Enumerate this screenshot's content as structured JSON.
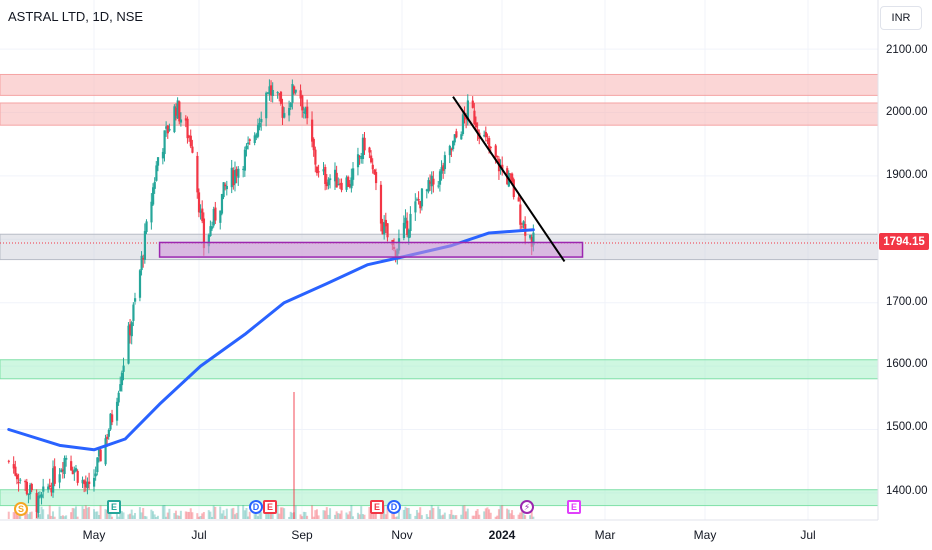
{
  "header": {
    "symbol_title": "ASTRAL LTD, 1D, NSE"
  },
  "currency": "INR",
  "last_price_label": "1794.15",
  "y_ticks": [
    "2100.00",
    "2000.00",
    "1900.00",
    "1800.00",
    "1700.00",
    "1600.00",
    "1500.00",
    "1400.00"
  ],
  "x_ticks": [
    "May",
    "Jul",
    "Sep",
    "Nov",
    "2024",
    "Mar",
    "May",
    "Jul"
  ],
  "events": [
    "S",
    "E",
    "D",
    "E",
    "E",
    "D",
    "⚡",
    "E"
  ],
  "colors": {
    "up": "#26a69a",
    "down": "#f23645",
    "ma_line": "#2962ff",
    "resistance_zone": "#f8b4b4",
    "support_zone": "#a8f0c8",
    "neutral_zone": "#d1d4dc",
    "purple_box": "#9c27b0",
    "trendline": "#000000"
  },
  "chart_data": {
    "type": "candlestick",
    "title": "ASTRAL LTD, 1D, NSE",
    "ylim": [
      1360,
      2160
    ],
    "y_ticks": [
      2100,
      2000,
      1900,
      1800,
      1700,
      1600,
      1500,
      1400
    ],
    "x_ticks": [
      "May",
      "Jul",
      "Sep",
      "Nov",
      "2024",
      "Mar",
      "May",
      "Jul"
    ],
    "last_price": 1794.15,
    "price_path": [
      {
        "date": "2023-03-10",
        "price": 1450
      },
      {
        "date": "2023-03-28",
        "price": 1380
      },
      {
        "date": "2023-04-14",
        "price": 1460
      },
      {
        "date": "2023-04-28",
        "price": 1400
      },
      {
        "date": "2023-05-12",
        "price": 1520
      },
      {
        "date": "2023-05-26",
        "price": 1700
      },
      {
        "date": "2023-06-09",
        "price": 1930
      },
      {
        "date": "2023-06-20",
        "price": 2010
      },
      {
        "date": "2023-06-30",
        "price": 1950
      },
      {
        "date": "2023-07-07",
        "price": 1790
      },
      {
        "date": "2023-07-20",
        "price": 1880
      },
      {
        "date": "2023-08-05",
        "price": 1950
      },
      {
        "date": "2023-08-15",
        "price": 2040
      },
      {
        "date": "2023-08-25",
        "price": 2000
      },
      {
        "date": "2023-09-02",
        "price": 2050
      },
      {
        "date": "2023-09-15",
        "price": 1900
      },
      {
        "date": "2023-10-05",
        "price": 1890
      },
      {
        "date": "2023-10-14",
        "price": 1960
      },
      {
        "date": "2023-10-24",
        "price": 1820
      },
      {
        "date": "2023-10-31",
        "price": 1780
      },
      {
        "date": "2023-11-15",
        "price": 1860
      },
      {
        "date": "2023-11-28",
        "price": 1900
      },
      {
        "date": "2023-12-08",
        "price": 1960
      },
      {
        "date": "2023-12-16",
        "price": 2010
      },
      {
        "date": "2023-12-28",
        "price": 1940
      },
      {
        "date": "2024-01-10",
        "price": 1890
      },
      {
        "date": "2024-01-17",
        "price": 1830
      },
      {
        "date": "2024-01-24",
        "price": 1794
      }
    ],
    "moving_average": [
      {
        "date": "2023-03-10",
        "value": 1500
      },
      {
        "date": "2023-04-10",
        "value": 1475
      },
      {
        "date": "2023-05-01",
        "value": 1468
      },
      {
        "date": "2023-05-20",
        "value": 1485
      },
      {
        "date": "2023-06-10",
        "value": 1540
      },
      {
        "date": "2023-07-05",
        "value": 1600
      },
      {
        "date": "2023-08-01",
        "value": 1650
      },
      {
        "date": "2023-08-25",
        "value": 1700
      },
      {
        "date": "2023-09-20",
        "value": 1730
      },
      {
        "date": "2023-10-15",
        "value": 1760
      },
      {
        "date": "2023-11-10",
        "value": 1775
      },
      {
        "date": "2023-12-05",
        "value": 1790
      },
      {
        "date": "2023-12-28",
        "value": 1810
      },
      {
        "date": "2024-01-24",
        "value": 1815
      }
    ],
    "zones": [
      {
        "kind": "resistance",
        "from": 2027,
        "to": 2060
      },
      {
        "kind": "resistance",
        "from": 1980,
        "to": 2015
      },
      {
        "kind": "neutral",
        "from": 1768,
        "to": 1808
      },
      {
        "kind": "support",
        "from": 1580,
        "to": 1610
      },
      {
        "kind": "support",
        "from": 1380,
        "to": 1405
      }
    ],
    "box": {
      "from_date": "2023-06-10",
      "to_date": "2024-02-23",
      "low": 1772,
      "high": 1795
    },
    "trendline": [
      {
        "date": "2023-12-06",
        "price": 2025
      },
      {
        "date": "2024-02-12",
        "price": 1765
      }
    ]
  }
}
